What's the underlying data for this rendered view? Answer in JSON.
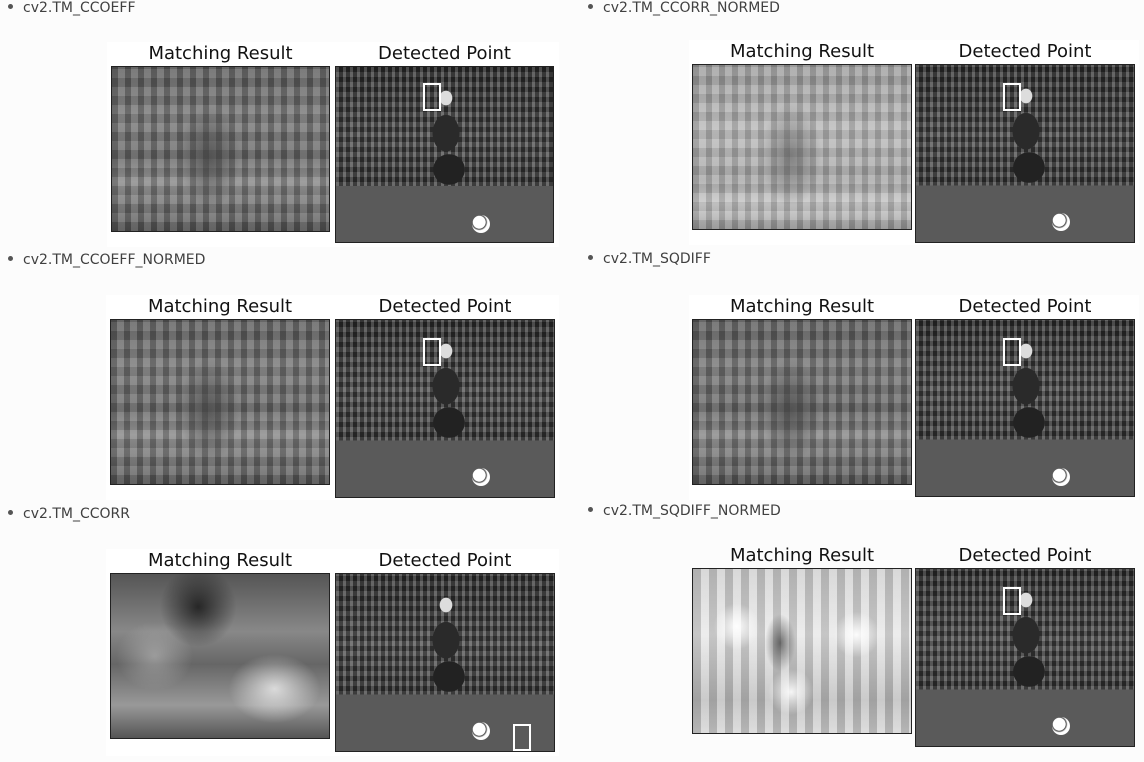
{
  "methods": [
    {
      "label": "cv2.TM_CCOEFF",
      "result_title": "Matching Result",
      "detect_title": "Detected Point"
    },
    {
      "label": "cv2.TM_CCORR_NORMED",
      "result_title": "Matching Result",
      "detect_title": "Detected Point"
    },
    {
      "label": "cv2.TM_CCOEFF_NORMED",
      "result_title": "Matching Result",
      "detect_title": "Detected Point"
    },
    {
      "label": "cv2.TM_SQDIFF",
      "result_title": "Matching Result",
      "detect_title": "Detected Point"
    },
    {
      "label": "cv2.TM_CCORR",
      "result_title": "Matching Result",
      "detect_title": "Detected Point"
    },
    {
      "label": "cv2.TM_SQDIFF_NORMED",
      "result_title": "Matching Result",
      "detect_title": "Detected Point"
    }
  ]
}
